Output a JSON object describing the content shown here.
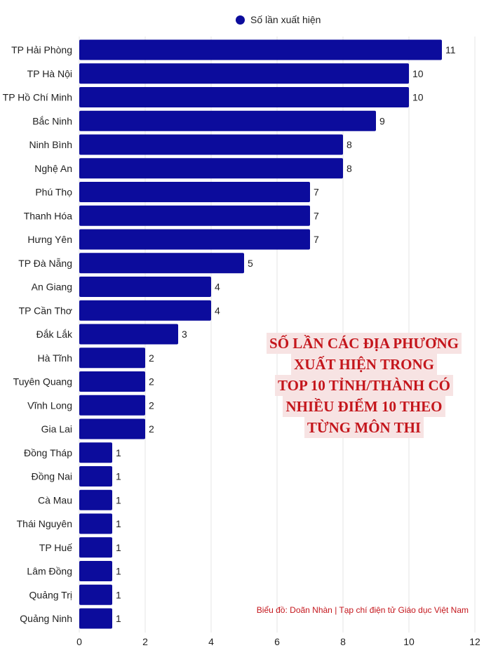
{
  "legend": {
    "label": "Số lần xuất hiện",
    "color": "#0c0c9c"
  },
  "title_lines": [
    "SỐ LẦN CÁC ĐỊA PHƯƠNG",
    "XUẤT HIỆN TRONG",
    "TOP 10 TỈNH/THÀNH CÓ",
    "NHIỀU ĐIỂM 10 THEO",
    "TỪNG MÔN THI"
  ],
  "source": "Biểu đồ: Doãn Nhàn | Tạp chí điện tử Giáo dục Việt Nam",
  "colors": {
    "bar": "#0c0c9c",
    "title": "#c4161c",
    "title_bg": "#f7e3e3",
    "grid": "#e6e6e6"
  },
  "chart_data": {
    "type": "bar",
    "orientation": "horizontal",
    "categories": [
      "TP Hải Phòng",
      "TP Hà Nội",
      "TP Hồ Chí Minh",
      "Bắc Ninh",
      "Ninh Bình",
      "Nghệ An",
      "Phú Thọ",
      "Thanh Hóa",
      "Hưng Yên",
      "TP Đà Nẵng",
      "An Giang",
      "TP Cần Thơ",
      "Đắk Lắk",
      "Hà Tĩnh",
      "Tuyên Quang",
      "Vĩnh Long",
      "Gia Lai",
      "Đồng Tháp",
      "Đồng Nai",
      "Cà Mau",
      "Thái Nguyên",
      "TP Huế",
      "Lâm Đồng",
      "Quảng Trị",
      "Quảng Ninh"
    ],
    "series": [
      {
        "name": "Số lần xuất hiện",
        "values": [
          11,
          10,
          10,
          9,
          8,
          8,
          7,
          7,
          7,
          5,
          4,
          4,
          3,
          2,
          2,
          2,
          2,
          1,
          1,
          1,
          1,
          1,
          1,
          1,
          1
        ]
      }
    ],
    "xlim": [
      0,
      12
    ],
    "xticks": [
      0,
      2,
      4,
      6,
      8,
      10,
      12
    ],
    "grid": true,
    "legend_position": "top"
  }
}
